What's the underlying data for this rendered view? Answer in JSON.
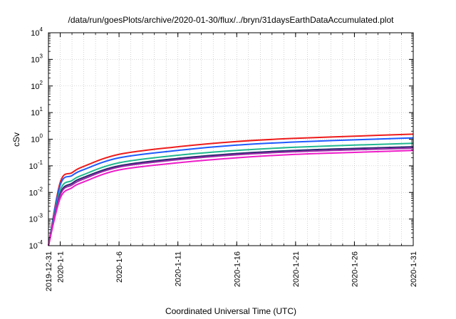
{
  "chart_data": {
    "type": "line",
    "title": "/data/run/goesPlots/archive/2020-01-30/flux/../bryn/31daysEarthDataAccumulated.plot",
    "xlabel": "Coordinated Universal Time (UTC)",
    "ylabel": "cSv",
    "yscale": "log",
    "ylim": [
      0.0001,
      10000
    ],
    "xlim": [
      "2019-12-31",
      "2020-01-31"
    ],
    "x_ticks": [
      "2019-12-31",
      "2020-1-1",
      "2020-1-6",
      "2020-1-11",
      "2020-1-16",
      "2020-1-21",
      "2020-1-26",
      "2020-1-31"
    ],
    "y_ticks": [
      {
        "value": 0.0001,
        "base": "10",
        "exp": "-4"
      },
      {
        "value": 0.001,
        "base": "10",
        "exp": "-3"
      },
      {
        "value": 0.01,
        "base": "10",
        "exp": "-2"
      },
      {
        "value": 0.1,
        "base": "10",
        "exp": "-1"
      },
      {
        "value": 1,
        "base": "10",
        "exp": "0"
      },
      {
        "value": 10,
        "base": "10",
        "exp": "1"
      },
      {
        "value": 100,
        "base": "10",
        "exp": "2"
      },
      {
        "value": 1000,
        "base": "10",
        "exp": "3"
      },
      {
        "value": 10000,
        "base": "10",
        "exp": "4"
      }
    ],
    "grid": true,
    "x": [
      "2019-12-31",
      "2020-01-01",
      "2020-01-02",
      "2020-01-03",
      "2020-01-06",
      "2020-01-11",
      "2020-01-16",
      "2020-01-21",
      "2020-01-26",
      "2020-01-31"
    ],
    "series": [
      {
        "color": "#ee1c1c",
        "values": [
          0.0001,
          0.024,
          0.055,
          0.095,
          0.27,
          0.52,
          0.82,
          1.08,
          1.3,
          1.55
        ]
      },
      {
        "color": "#1e5aff",
        "values": [
          0.0001,
          0.019,
          0.043,
          0.072,
          0.2,
          0.38,
          0.6,
          0.79,
          0.95,
          1.12
        ]
      },
      {
        "color": "#20b890",
        "values": [
          0.0001,
          0.012,
          0.028,
          0.047,
          0.13,
          0.25,
          0.38,
          0.5,
          0.6,
          0.7
        ]
      },
      {
        "color": "#2a2a70",
        "values": [
          0.0001,
          0.009,
          0.022,
          0.037,
          0.1,
          0.19,
          0.29,
          0.38,
          0.45,
          0.52
        ]
      },
      {
        "color": "#9a2aa8",
        "values": [
          0.0001,
          0.008,
          0.019,
          0.032,
          0.09,
          0.17,
          0.26,
          0.34,
          0.4,
          0.46
        ]
      },
      {
        "color": "#ee1cc8",
        "values": [
          0.0001,
          0.006,
          0.015,
          0.025,
          0.07,
          0.13,
          0.2,
          0.27,
          0.32,
          0.38
        ]
      }
    ]
  }
}
